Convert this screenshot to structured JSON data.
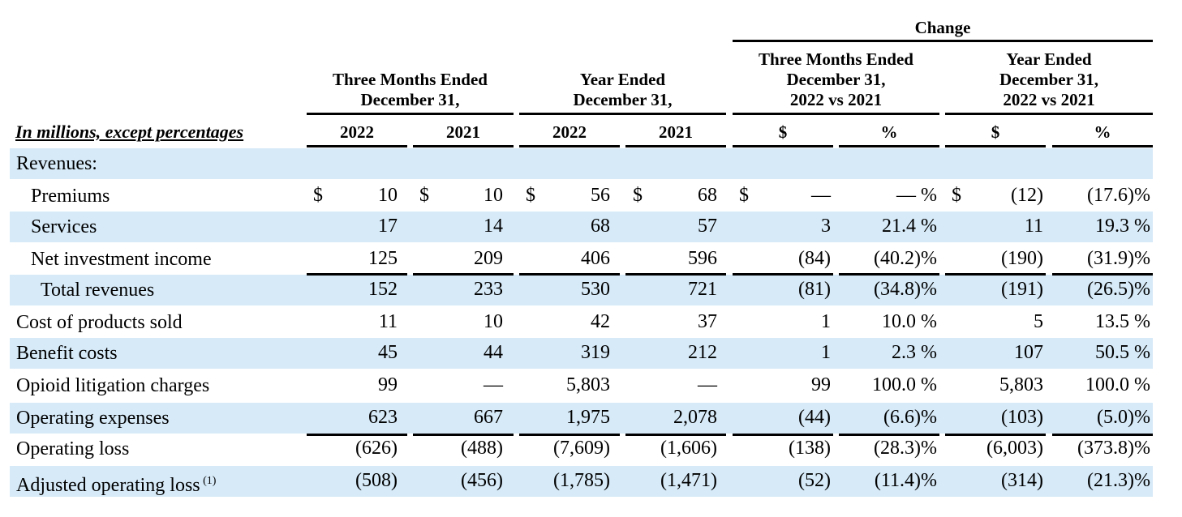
{
  "header": {
    "change": "Change",
    "group_three_months": [
      "Three Months Ended",
      "December 31,"
    ],
    "group_year": [
      "Year Ended",
      "December 31,"
    ],
    "change_three_months": [
      "Three Months Ended",
      "December 31,",
      "2022 vs 2021"
    ],
    "change_year": [
      "Year Ended",
      "December 31,",
      "2022 vs 2021"
    ],
    "caption": "In millions, except percentages",
    "col_labels": [
      "2022",
      "2021",
      "2022",
      "2021",
      "$",
      "%",
      "$",
      "%"
    ]
  },
  "rows": [
    {
      "label": "Revenues:",
      "indent": 0,
      "values": []
    },
    {
      "label": "Premiums",
      "indent": 1,
      "dollar": true,
      "values": [
        "10",
        "10",
        "56",
        "68",
        "—",
        "— %",
        "(12)",
        "(17.6)%"
      ]
    },
    {
      "label": "Services",
      "indent": 1,
      "values": [
        "17",
        "14",
        "68",
        "57",
        "3",
        "21.4 %",
        "11",
        "19.3 %"
      ]
    },
    {
      "label": "Net investment income",
      "indent": 1,
      "values": [
        "125",
        "209",
        "406",
        "596",
        "(84)",
        "(40.2)%",
        "(190)",
        "(31.9)%"
      ]
    },
    {
      "label": "Total revenues",
      "indent": 2,
      "values": [
        "152",
        "233",
        "530",
        "721",
        "(81)",
        "(34.8)%",
        "(191)",
        "(26.5)%"
      ]
    },
    {
      "label": "Cost of products sold",
      "indent": 0,
      "values": [
        "11",
        "10",
        "42",
        "37",
        "1",
        "10.0 %",
        "5",
        "13.5 %"
      ]
    },
    {
      "label": "Benefit costs",
      "indent": 0,
      "values": [
        "45",
        "44",
        "319",
        "212",
        "1",
        "2.3 %",
        "107",
        "50.5 %"
      ]
    },
    {
      "label": "Opioid litigation charges",
      "indent": 0,
      "values": [
        "99",
        "—",
        "5,803",
        "—",
        "99",
        "100.0 %",
        "5,803",
        "100.0 %"
      ]
    },
    {
      "label": "Operating expenses",
      "indent": 0,
      "values": [
        "623",
        "667",
        "1,975",
        "2,078",
        "(44)",
        "(6.6)%",
        "(103)",
        "(5.0)%"
      ]
    },
    {
      "label": "Operating loss",
      "indent": 0,
      "values": [
        "(626)",
        "(488)",
        "(7,609)",
        "(1,606)",
        "(138)",
        "(28.3)%",
        "(6,003)",
        "(373.8)%"
      ]
    },
    {
      "label": "Adjusted operating loss",
      "footnote": "(1)",
      "indent": 0,
      "values": [
        "(508)",
        "(456)",
        "(1,785)",
        "(1,471)",
        "(52)",
        "(11.4)%",
        "(314)",
        "(21.3)%"
      ]
    }
  ],
  "dollar_sign": "$",
  "colors": {
    "band": "#d6eaf8"
  }
}
